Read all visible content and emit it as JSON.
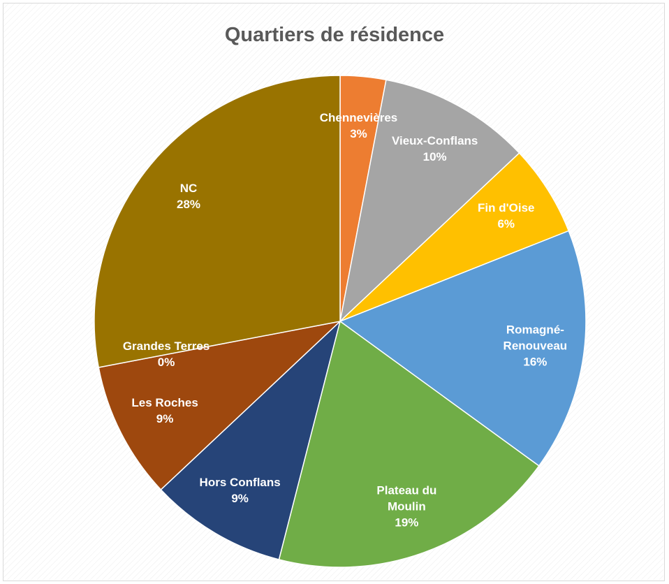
{
  "chart_data": {
    "type": "pie",
    "title": "Quartiers de résidence",
    "categories": [
      "Chennevières",
      "Vieux-Conflans",
      "Fin d'Oise",
      "Romagné-Renouveau",
      "Plateau du Moulin",
      "Hors Conflans",
      "Les Roches",
      "Grandes Terres",
      "NC"
    ],
    "values": [
      3,
      10,
      6,
      16,
      19,
      9,
      9,
      0,
      28
    ],
    "value_labels": [
      "3%",
      "10%",
      "6%",
      "16%",
      "19%",
      "9%",
      "9%",
      "0%",
      "28%"
    ],
    "colors": [
      "#ed7d31",
      "#a5a5a5",
      "#ffc000",
      "#5b9bd5",
      "#70ad47",
      "#264478",
      "#9e480e",
      "#636363",
      "#997300"
    ]
  }
}
